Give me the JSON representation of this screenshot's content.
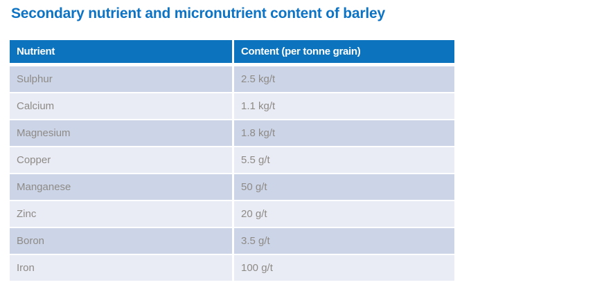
{
  "title": "Secondary nutrient and micronutrient content of barley",
  "colors": {
    "page_bg": "#ffffff",
    "title_text": "#0d73c4",
    "header_bg": "#0c74be",
    "header_text": "#ffffff",
    "row_dark": "#ccd5e7",
    "row_light": "#e9ecf5",
    "row_text": "#8e8a86"
  },
  "table": {
    "columns": [
      "Nutrient",
      "Content (per tonne grain)"
    ],
    "rows": [
      {
        "nutrient": "Sulphur",
        "content": "2.5 kg/t"
      },
      {
        "nutrient": "Calcium",
        "content": "1.1 kg/t"
      },
      {
        "nutrient": "Magnesium",
        "content": "1.8 kg/t"
      },
      {
        "nutrient": "Copper",
        "content": "5.5 g/t"
      },
      {
        "nutrient": "Manganese",
        "content": "50 g/t"
      },
      {
        "nutrient": "Zinc",
        "content": "20 g/t"
      },
      {
        "nutrient": "Boron",
        "content": "3.5 g/t"
      },
      {
        "nutrient": "Iron",
        "content": "100 g/t"
      }
    ]
  },
  "chart_data": {
    "type": "table",
    "title": "Secondary nutrient and micronutrient content of barley",
    "columns": [
      "Nutrient",
      "Content (per tonne grain)"
    ],
    "rows": [
      [
        "Sulphur",
        "2.5 kg/t"
      ],
      [
        "Calcium",
        "1.1 kg/t"
      ],
      [
        "Magnesium",
        "1.8 kg/t"
      ],
      [
        "Copper",
        "5.5 g/t"
      ],
      [
        "Manganese",
        "50 g/t"
      ],
      [
        "Zinc",
        "20 g/t"
      ],
      [
        "Boron",
        "3.5 g/t"
      ],
      [
        "Iron",
        "100 g/t"
      ]
    ]
  }
}
